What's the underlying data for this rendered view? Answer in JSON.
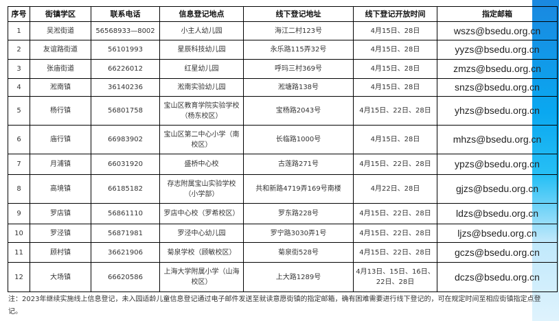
{
  "table": {
    "headers": [
      "序号",
      "街镇学区",
      "联系电话",
      "信息登记地点",
      "线下登记地址",
      "线下登记开放时间",
      "指定邮箱"
    ],
    "rows": [
      [
        "1",
        "吴淞街道",
        "56568933—8002",
        "小主人幼儿园",
        "海江二村123号",
        "4月15日、28日",
        "wszs@bsedu.org.cn"
      ],
      [
        "2",
        "友谊路街道",
        "56101993",
        "星辰科技幼儿园",
        "永乐路115弄32号",
        "4月15日、28日",
        "yyzs@bsedu.org.cn"
      ],
      [
        "3",
        "张庙街道",
        "66226012",
        "红星幼儿园",
        "呼玛三村369号",
        "4月15日、28日",
        "zmzs@bsedu.org.cn"
      ],
      [
        "4",
        "淞南镇",
        "36140236",
        "淞南实验幼儿园",
        "淞塘路138号",
        "4月15日、28日",
        "snzs@bsedu.org.cn"
      ],
      [
        "5",
        "杨行镇",
        "56801758",
        "宝山区教育学院实验学校（杨东校区）",
        "宝杨路2043号",
        "4月15日、22日、28日",
        "yhzs@bsedu.org.cn"
      ],
      [
        "6",
        "庙行镇",
        "66983902",
        "宝山区第二中心小学（南校区）",
        "长临路1000号",
        "4月15日、28日",
        "mhzs@bsedu.org.cn"
      ],
      [
        "7",
        "月浦镇",
        "66031920",
        "盛桥中心校",
        "古莲路271号",
        "4月15日、22日、28日",
        "ypzs@bsedu.org.cn"
      ],
      [
        "8",
        "高境镇",
        "66185182",
        "存志附属宝山实验学校（小学部）",
        "共和新路4719弄169号南楼",
        "4月22日、28日",
        "gjzs@bsedu.org.cn"
      ],
      [
        "9",
        "罗店镇",
        "56861110",
        "罗店中心校（罗希校区）",
        "罗东路228号",
        "4月15日、22日、28日",
        "ldzs@bsedu.org.cn"
      ],
      [
        "10",
        "罗泾镇",
        "56871981",
        "罗泾中心幼儿园",
        "罗宁路3030弄1号",
        "4月15日、22日、28日",
        "ljzs@bsedu.org.cn"
      ],
      [
        "11",
        "顾村镇",
        "36621906",
        "菊泉学校（顾敏校区）",
        "菊泉街528号",
        "4月15日、22日、28日",
        "gczs@bsedu.org.cn"
      ],
      [
        "12",
        "大场镇",
        "66620586",
        "上海大学附属小学（山海校区）",
        "上大路1289号",
        "4月13日、15日、16日、22日、28日",
        "dczs@bsedu.org.cn"
      ]
    ]
  },
  "note": "注：2023年继续实施线上信息登记，未入园适龄儿童信息登记通过电子邮件发送至就读意愿街镇的指定邮箱，确有困难需要进行线下登记的，可在规定时间至相应街镇指定点登记。"
}
